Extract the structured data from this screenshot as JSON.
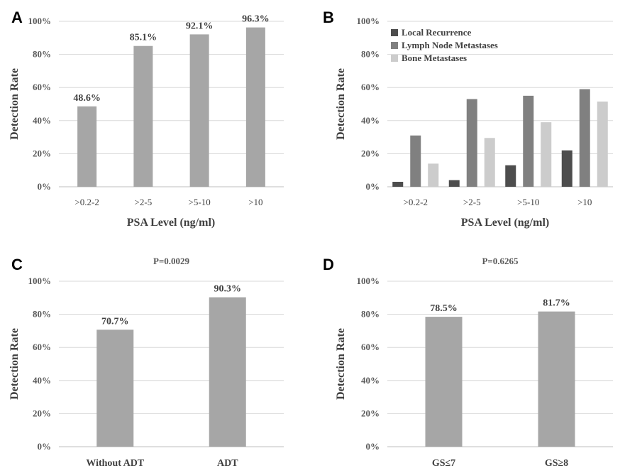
{
  "colors": {
    "gray_bar": "#a6a6a6",
    "local_recurrence": "#4d4d4d",
    "lymph_node": "#808080",
    "bone": "#cccccc"
  },
  "chart_data": [
    {
      "panel": "A",
      "type": "bar",
      "title": "",
      "xlabel": "PSA Level (ng/ml)",
      "ylabel": "Detection Rate",
      "ylim": [
        0,
        100
      ],
      "yticks": [
        "0%",
        "20%",
        "40%",
        "60%",
        "80%",
        "100%"
      ],
      "categories": [
        ">0.2-2",
        ">2-5",
        ">5-10",
        ">10"
      ],
      "values": [
        48.6,
        85.1,
        92.1,
        96.3
      ],
      "data_labels": [
        "48.6%",
        "85.1%",
        "92.1%",
        "96.3%"
      ],
      "grid": true,
      "legend": ""
    },
    {
      "panel": "B",
      "type": "bar",
      "title": "",
      "xlabel": "PSA Level (ng/ml)",
      "ylabel": "Detection Rate",
      "ylim": [
        0,
        100
      ],
      "yticks": [
        "0%",
        "20%",
        "40%",
        "60%",
        "80%",
        "100%"
      ],
      "categories": [
        ">0.2-2",
        ">2-5",
        ">5-10",
        ">10"
      ],
      "series": [
        {
          "name": "Local Recurrence",
          "values": [
            3,
            4,
            13,
            22
          ]
        },
        {
          "name": "Lymph Node Metastases",
          "values": [
            31,
            53,
            55,
            59
          ]
        },
        {
          "name": "Bone Metastases",
          "values": [
            14,
            29.5,
            39,
            51.5
          ]
        }
      ],
      "grid": true,
      "legend": "top-left"
    },
    {
      "panel": "C",
      "type": "bar",
      "title": "P=0.0029",
      "xlabel": "",
      "ylabel": "Detection Rate",
      "ylim": [
        0,
        100
      ],
      "yticks": [
        "0%",
        "20%",
        "40%",
        "60%",
        "80%",
        "100%"
      ],
      "categories": [
        "Without ADT",
        "ADT"
      ],
      "values": [
        70.7,
        90.3
      ],
      "data_labels": [
        "70.7%",
        "90.3%"
      ],
      "grid": true,
      "legend": ""
    },
    {
      "panel": "D",
      "type": "bar",
      "title": "P=0.6265",
      "xlabel": "",
      "ylabel": "Detection Rate",
      "ylim": [
        0,
        100
      ],
      "yticks": [
        "0%",
        "20%",
        "40%",
        "60%",
        "80%",
        "100%"
      ],
      "categories": [
        "GS≤7",
        "GS≥8"
      ],
      "values": [
        78.5,
        81.7
      ],
      "data_labels": [
        "78.5%",
        "81.7%"
      ],
      "grid": true,
      "legend": ""
    }
  ]
}
